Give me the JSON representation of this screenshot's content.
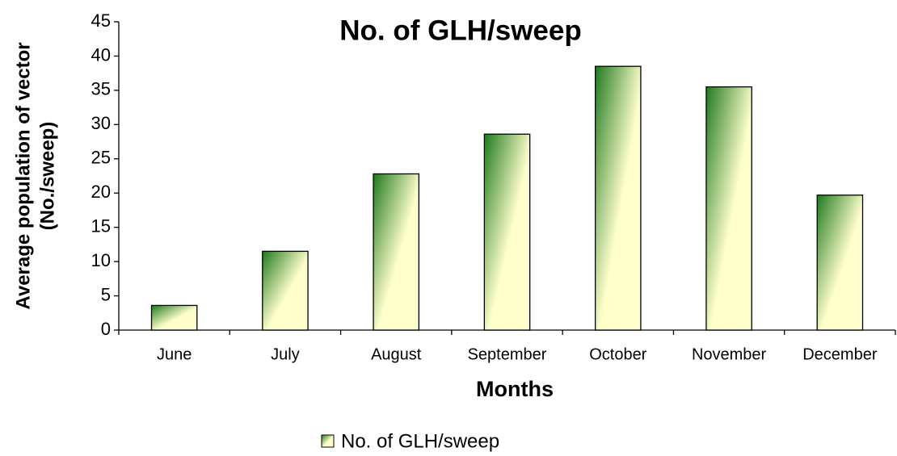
{
  "chart_data": {
    "type": "bar",
    "title": "No. of GLH/sweep",
    "xlabel": "Months",
    "ylabel": [
      "Average population of vector",
      "(No./sweep)"
    ],
    "categories": [
      "June",
      "July",
      "August",
      "September",
      "October",
      "November",
      "December"
    ],
    "series": [
      {
        "name": "No. of GLH/sweep",
        "color": "#1f7a1f",
        "color_end": "#ffffcc",
        "values": [
          3.6,
          11.5,
          22.8,
          28.6,
          38.5,
          35.5,
          19.7
        ]
      }
    ],
    "ylim": [
      0,
      45
    ],
    "yticks": [
      0,
      5,
      10,
      15,
      20,
      25,
      30,
      35,
      40,
      45
    ],
    "grid": false,
    "legend": "bottom"
  }
}
